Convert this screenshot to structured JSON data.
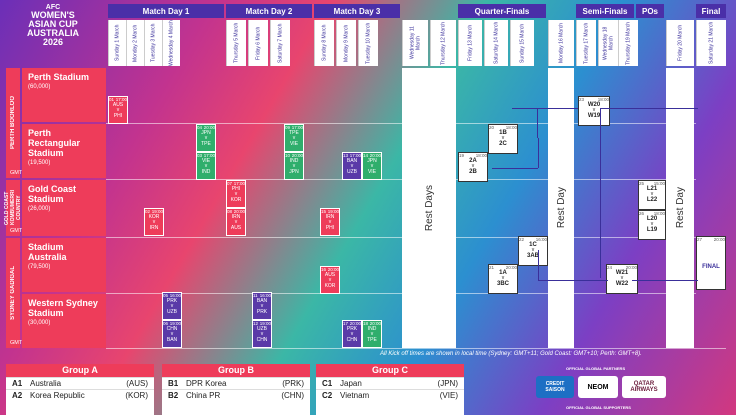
{
  "logo": {
    "line1": "AFC",
    "line2": "WOMEN'S",
    "line3": "ASIAN CUP",
    "line4": "AUSTRALIA",
    "line5": "2026"
  },
  "headers": {
    "md1": "Match Day 1",
    "md2": "Match Day 2",
    "md3": "Match Day 3",
    "qf": "Quarter-Finals",
    "sf": "Semi-Finals",
    "po": "POs",
    "final": "Final"
  },
  "dates": [
    "Sunday 1 March",
    "Monday 2 March",
    "Tuesday 3 March",
    "Wednesday 4 March",
    "Thursday 5 March",
    "Friday 6 March",
    "Saturday 7 March",
    "Sunday 8 March",
    "Monday 9 March",
    "Tuesday 10 March",
    "Wednesday 11 March",
    "Thursday 12 March",
    "Friday 13 March",
    "Saturday 14 March",
    "Sunday 15 March",
    "Monday 16 March",
    "Tuesday 17 March",
    "Wednesday 18 March",
    "Thursday 19 March",
    "Friday 20 March",
    "Saturday 21 March"
  ],
  "regions": {
    "perth": "PERTH BOORLOO",
    "gold": "GOLD COAST KOMBUMERRI COUNTRY",
    "sydney": "SYDNEY GADIGAL"
  },
  "gmt": {
    "perth": "GMT+8",
    "gold": "GMT+10",
    "sydney": "GMT+11"
  },
  "venues": [
    {
      "name": "Perth Stadium",
      "cap": "(60,000)"
    },
    {
      "name": "Perth Rectangular Stadium",
      "cap": "(19,500)"
    },
    {
      "name": "Gold Coast Stadium",
      "cap": "(26,000)"
    },
    {
      "name": "Stadium Australia",
      "cap": "(79,500)"
    },
    {
      "name": "Western Sydney Stadium",
      "cap": "(30,000)"
    }
  ],
  "rest": {
    "r1": "Rest Days",
    "r2": "Rest Day",
    "r3": "Rest Day"
  },
  "matches": [
    {
      "no": "01",
      "time": "17:00",
      "a": "AUS",
      "b": "PHI",
      "kind": "red"
    },
    {
      "no": "04",
      "time": "20:00",
      "a": "JPN",
      "b": "TPE",
      "kind": "green"
    },
    {
      "no": "03",
      "time": "17:00",
      "a": "VIE",
      "b": "IND",
      "kind": "green"
    },
    {
      "no": "02",
      "time": "19:00",
      "a": "KOR",
      "b": "IRN",
      "kind": "red"
    },
    {
      "no": "05",
      "time": "16:00",
      "a": "PRK",
      "b": "UZB",
      "kind": "purple"
    },
    {
      "no": "06",
      "time": "19:00",
      "a": "CHN",
      "b": "BAN",
      "kind": "purple"
    },
    {
      "no": "07",
      "time": "17:00",
      "a": "PHI",
      "b": "KOR",
      "kind": "red"
    },
    {
      "no": "08",
      "time": "20:00",
      "a": "IRN",
      "b": "AUS",
      "kind": "red"
    },
    {
      "no": "09",
      "time": "17:00",
      "a": "TPE",
      "b": "VIE",
      "kind": "green"
    },
    {
      "no": "10",
      "time": "20:00",
      "a": "IND",
      "b": "JPN",
      "kind": "green"
    },
    {
      "no": "11",
      "time": "16:00",
      "a": "BAN",
      "b": "PRK",
      "kind": "purple"
    },
    {
      "no": "12",
      "time": "19:00",
      "a": "UZB",
      "b": "CHN",
      "kind": "purple"
    },
    {
      "no": "13",
      "time": "17:00",
      "a": "BAN",
      "b": "UZB",
      "kind": "purple"
    },
    {
      "no": "14",
      "time": "20:00",
      "a": "JPN",
      "b": "VIE",
      "kind": "green"
    },
    {
      "no": "15",
      "time": "19:00",
      "a": "IRN",
      "b": "PHI",
      "kind": "red"
    },
    {
      "no": "16",
      "time": "20:00",
      "a": "AUS",
      "b": "KOR",
      "kind": "red"
    },
    {
      "no": "17",
      "time": "20:00",
      "a": "PRK",
      "b": "CHN",
      "kind": "purple"
    },
    {
      "no": "18",
      "time": "20:00",
      "a": "IND",
      "b": "TPE",
      "kind": "green"
    }
  ],
  "knockout": [
    {
      "no": "19",
      "time": "18:00",
      "a": "2A",
      "b": "2B"
    },
    {
      "no": "20",
      "time": "18:00",
      "a": "1B",
      "b": "2C"
    },
    {
      "no": "21",
      "time": "20:00",
      "a": "1A",
      "b": "3BC"
    },
    {
      "no": "22",
      "time": "16:00",
      "a": "1C",
      "b": "3AB"
    },
    {
      "no": "23",
      "time": "18:00",
      "a": "W20",
      "b": "W19"
    },
    {
      "no": "24",
      "time": "20:00",
      "a": "W21",
      "b": "W22"
    },
    {
      "no": "25",
      "time": "15:00",
      "a": "L21",
      "b": "L22"
    },
    {
      "no": "26",
      "time": "18:00",
      "a": "L20",
      "b": "L19"
    },
    {
      "no": "27",
      "time": "20:00",
      "a": "FINAL",
      "b": ""
    }
  ],
  "vs": "v",
  "footnote": "All Kick off times are shown in local time (Sydney: GMT+11; Gold Coast: GMT+10; Perth: GMT+8).",
  "groups": [
    {
      "title": "Group A",
      "rows": [
        [
          "A1",
          "Australia",
          "(AUS)"
        ],
        [
          "A2",
          "Korea Republic",
          "(KOR)"
        ]
      ]
    },
    {
      "title": "Group B",
      "rows": [
        [
          "B1",
          "DPR Korea",
          "(PRK)"
        ],
        [
          "B2",
          "China PR",
          "(CHN)"
        ]
      ]
    },
    {
      "title": "Group C",
      "rows": [
        [
          "C1",
          "Japan",
          "(JPN)"
        ],
        [
          "C2",
          "Vietnam",
          "(VIE)"
        ]
      ]
    }
  ],
  "sponsors": {
    "label": "OFFICIAL GLOBAL PARTNERS",
    "s1": "CREDIT SAISON",
    "s2": "NEOM",
    "s3": "QATAR AIRWAYS",
    "label2": "OFFICIAL GLOBAL SUPPORTERS"
  }
}
